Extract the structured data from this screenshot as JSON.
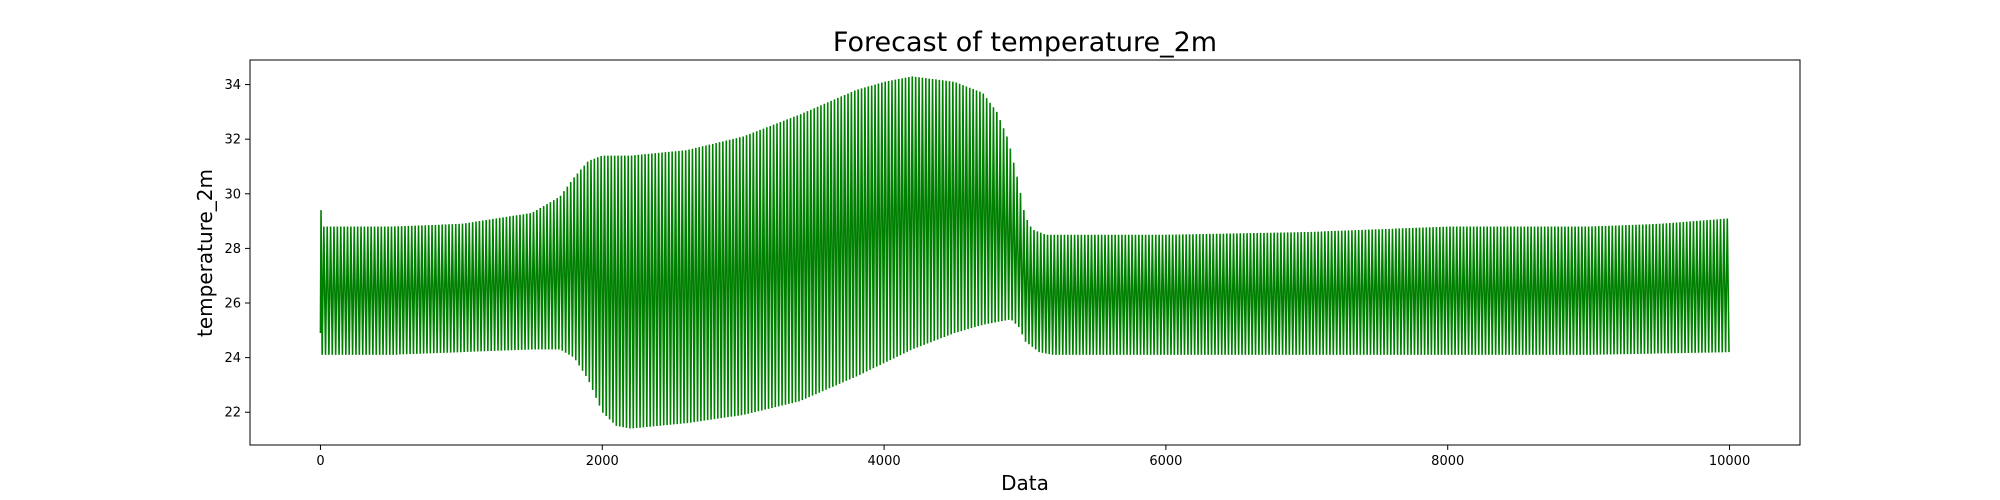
{
  "chart_data": {
    "type": "line",
    "title": "Forecast of temperature_2m",
    "xlabel": "Data",
    "ylabel": "temperature_2m",
    "xlim": [
      -500,
      10500
    ],
    "ylim": [
      20.8,
      34.9
    ],
    "x_ticks": [
      0,
      2000,
      4000,
      6000,
      8000,
      10000
    ],
    "y_ticks": [
      22,
      24,
      26,
      28,
      30,
      32,
      34
    ],
    "grid": false,
    "color": "#008000",
    "series": [
      {
        "x_start": 0,
        "x_end": 10000,
        "cycle_length": 24,
        "initial_value": 24.9,
        "initial_peak": 29.4,
        "upper_envelope": [
          [
            0,
            28.8
          ],
          [
            500,
            28.8
          ],
          [
            1000,
            28.9
          ],
          [
            1500,
            29.3
          ],
          [
            1700,
            29.9
          ],
          [
            1800,
            30.6
          ],
          [
            1900,
            31.2
          ],
          [
            2000,
            31.4
          ],
          [
            2200,
            31.4
          ],
          [
            2600,
            31.6
          ],
          [
            3000,
            32.1
          ],
          [
            3400,
            32.9
          ],
          [
            3800,
            33.8
          ],
          [
            4000,
            34.1
          ],
          [
            4200,
            34.3
          ],
          [
            4500,
            34.1
          ],
          [
            4700,
            33.7
          ],
          [
            4800,
            33.0
          ],
          [
            4880,
            32.0
          ],
          [
            4950,
            30.5
          ],
          [
            5000,
            29.2
          ],
          [
            5050,
            28.7
          ],
          [
            5150,
            28.5
          ],
          [
            6000,
            28.5
          ],
          [
            7000,
            28.6
          ],
          [
            8000,
            28.8
          ],
          [
            9000,
            28.8
          ],
          [
            9500,
            28.9
          ],
          [
            10000,
            29.1
          ]
        ],
        "lower_envelope": [
          [
            0,
            24.1
          ],
          [
            500,
            24.1
          ],
          [
            1000,
            24.2
          ],
          [
            1500,
            24.3
          ],
          [
            1700,
            24.3
          ],
          [
            1800,
            24.0
          ],
          [
            1900,
            23.2
          ],
          [
            2000,
            22.0
          ],
          [
            2100,
            21.5
          ],
          [
            2200,
            21.4
          ],
          [
            2600,
            21.6
          ],
          [
            3000,
            21.9
          ],
          [
            3400,
            22.4
          ],
          [
            3800,
            23.3
          ],
          [
            4000,
            23.8
          ],
          [
            4200,
            24.3
          ],
          [
            4500,
            24.9
          ],
          [
            4700,
            25.2
          ],
          [
            4900,
            25.4
          ],
          [
            4960,
            25.1
          ],
          [
            5000,
            24.6
          ],
          [
            5100,
            24.2
          ],
          [
            5200,
            24.1
          ],
          [
            7000,
            24.1
          ],
          [
            9000,
            24.1
          ],
          [
            10000,
            24.2
          ]
        ]
      }
    ]
  }
}
